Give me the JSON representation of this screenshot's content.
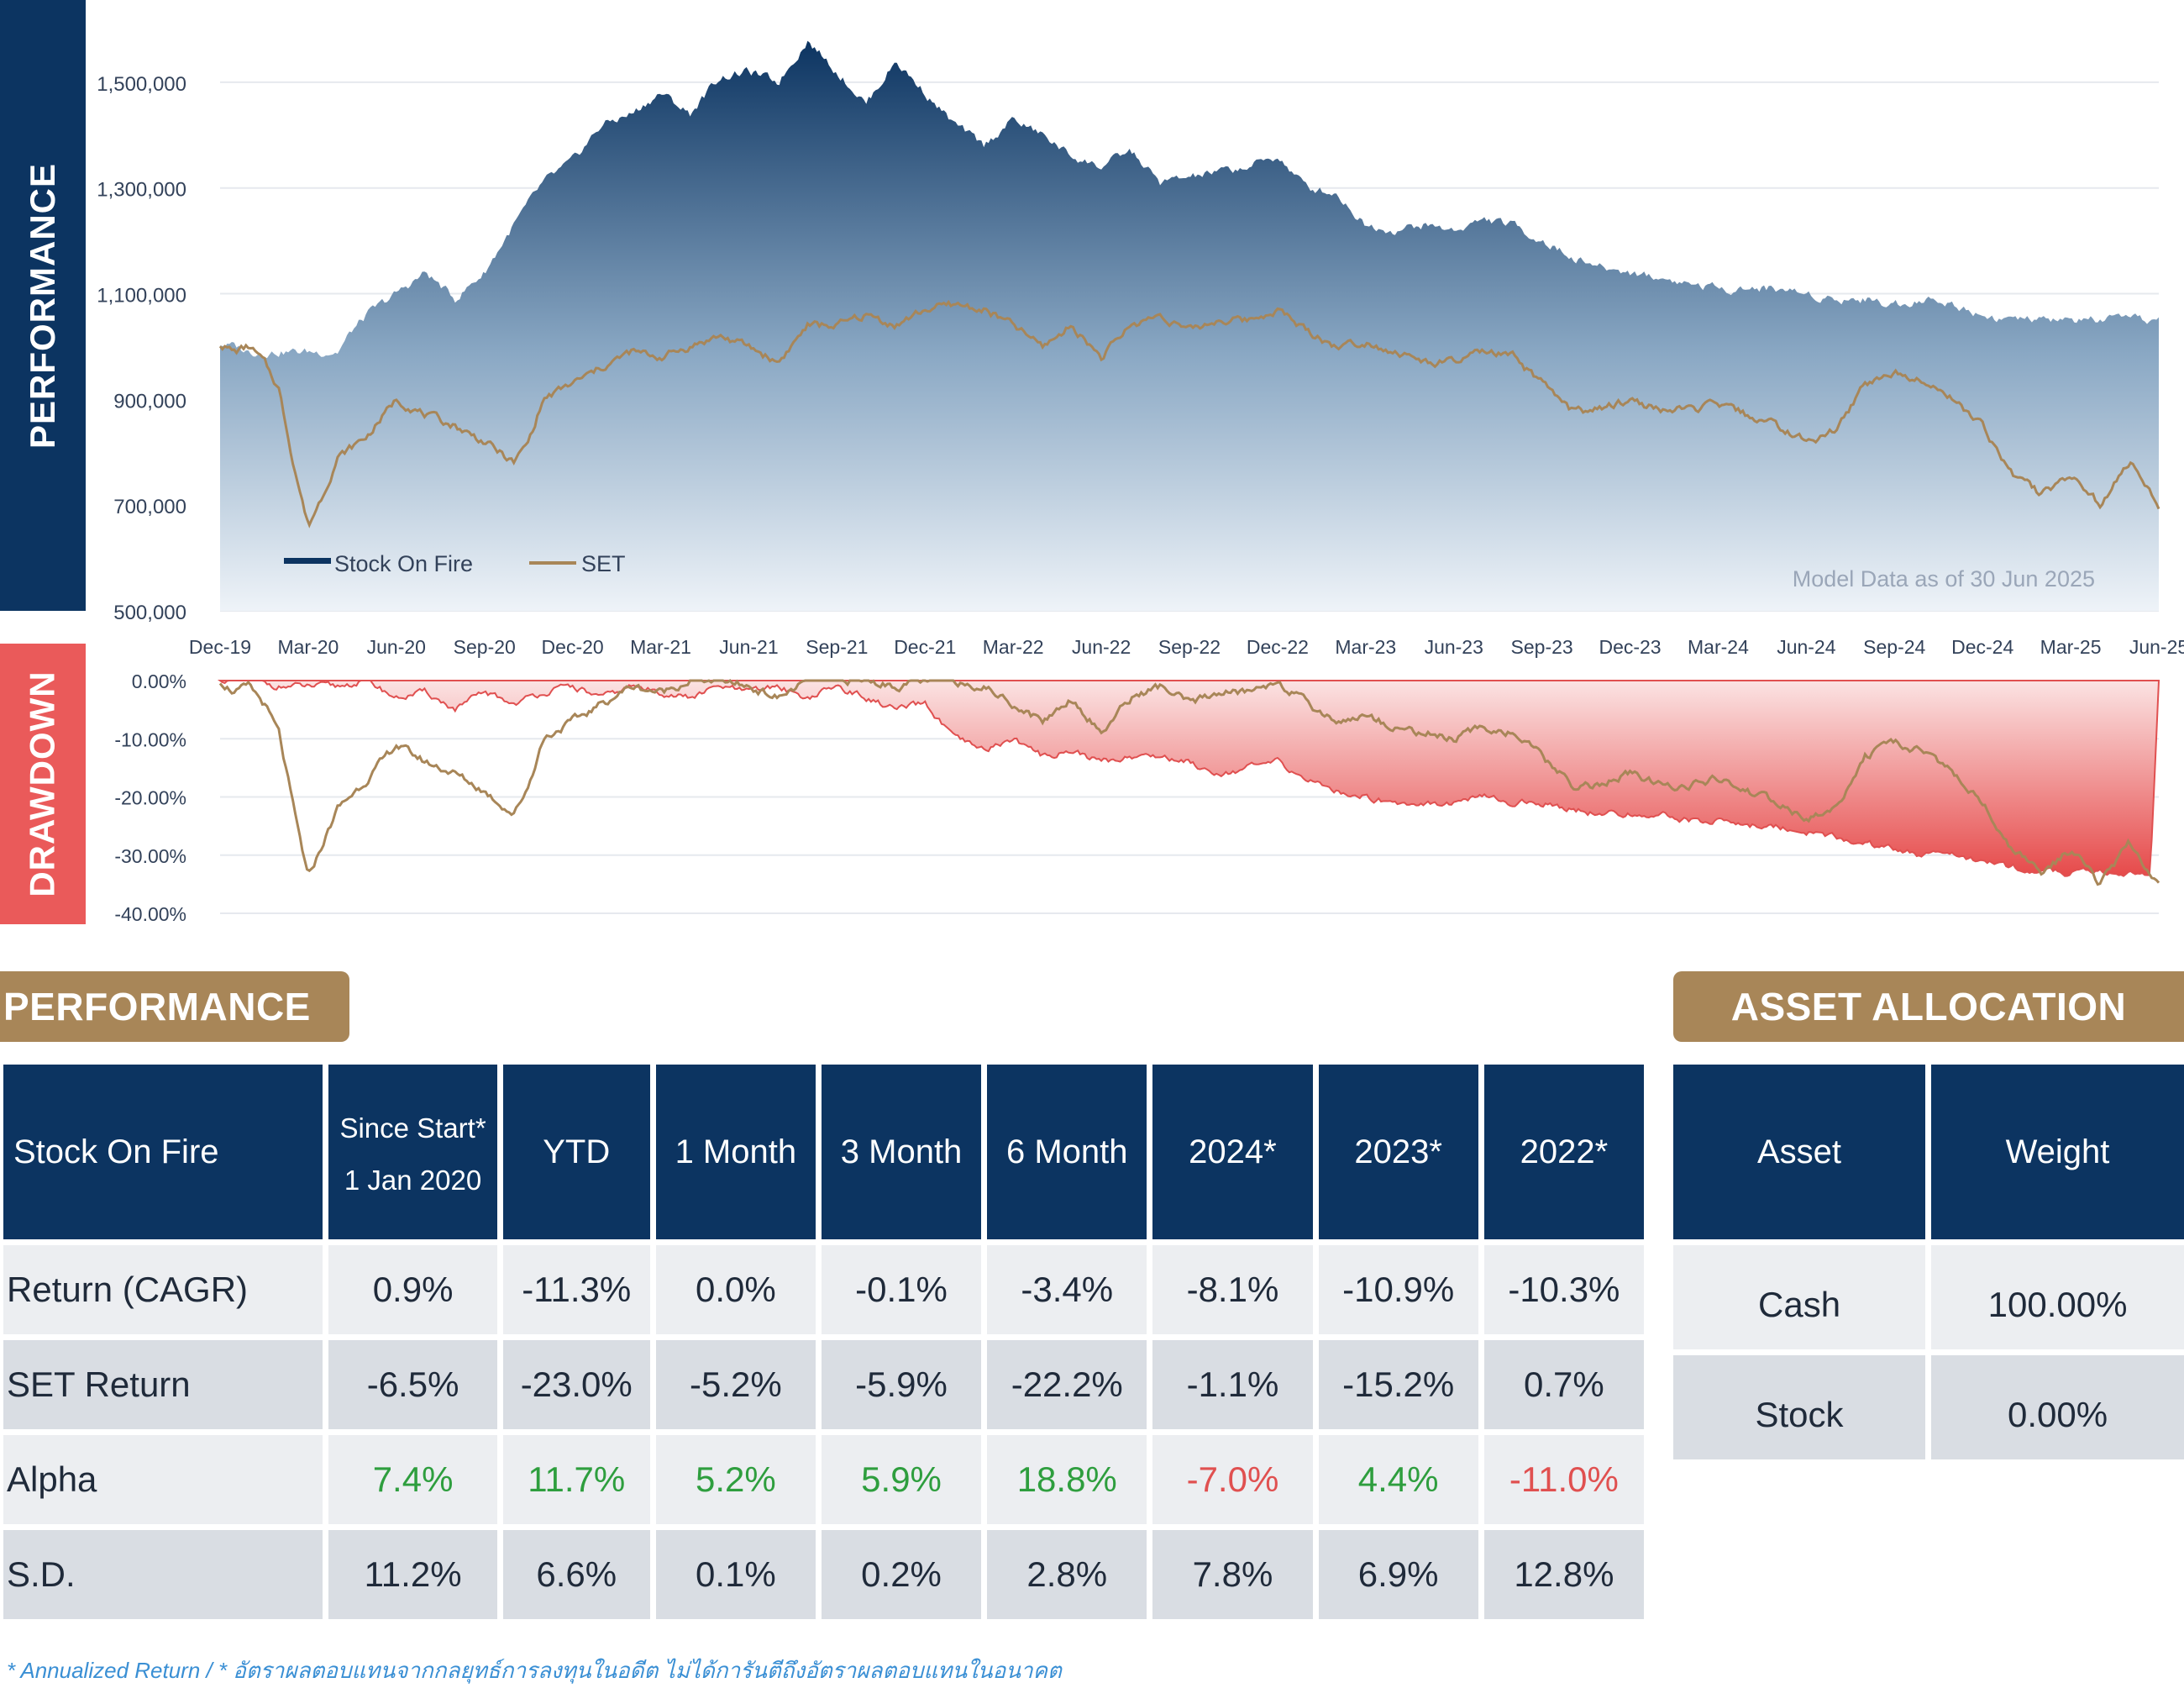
{
  "chart_data": [
    {
      "type": "area",
      "side_label": "PERFORMANCE",
      "title": "",
      "y_ticks": [
        "1,500,000",
        "1,300,000",
        "1,100,000",
        "900,000",
        "700,000",
        "500,000"
      ],
      "y_tick_values": [
        1500000,
        1300000,
        1100000,
        900000,
        700000,
        500000
      ],
      "ylim": [
        500000,
        1600000
      ],
      "x_ticks": [
        "Dec-19",
        "Mar-20",
        "Jun-20",
        "Sep-20",
        "Dec-20",
        "Mar-21",
        "Jun-21",
        "Sep-21",
        "Dec-21",
        "Mar-22",
        "Jun-22",
        "Sep-22",
        "Dec-22",
        "Mar-23",
        "Jun-23",
        "Sep-23",
        "Dec-23",
        "Mar-24",
        "Jun-24",
        "Sep-24",
        "Dec-24",
        "Mar-25",
        "Jun-25"
      ],
      "x_tick_months": [
        0,
        3,
        6,
        9,
        12,
        15,
        18,
        21,
        24,
        27,
        30,
        33,
        36,
        39,
        42,
        45,
        48,
        51,
        54,
        57,
        60,
        63,
        66
      ],
      "annotation": "Model Data as of 30 Jun 2025",
      "legend_position": "bottom-left",
      "grid": true,
      "series": [
        {
          "name": "Stock On Fire",
          "color": "#0c3461",
          "x_month": [
            0,
            0.5,
            1,
            2,
            3,
            4,
            4.5,
            5,
            6,
            7,
            8,
            9,
            10,
            11,
            12,
            13,
            14,
            15,
            16,
            17,
            18,
            19,
            20,
            21,
            22,
            23,
            24,
            25,
            26,
            27,
            28,
            29,
            30,
            31,
            32,
            33,
            34,
            35,
            36,
            37,
            38,
            39,
            40,
            41,
            42,
            43,
            44,
            45,
            46,
            47,
            48,
            49,
            50,
            51,
            52,
            53,
            54,
            55,
            56,
            57,
            58,
            59,
            60,
            61,
            62,
            63,
            64,
            65,
            66
          ],
          "values": [
            1005000,
            1000000,
            990000,
            990000,
            990000,
            990000,
            1030000,
            1060000,
            1100000,
            1140000,
            1090000,
            1140000,
            1230000,
            1310000,
            1350000,
            1420000,
            1440000,
            1480000,
            1440000,
            1510000,
            1520000,
            1500000,
            1580000,
            1520000,
            1460000,
            1540000,
            1480000,
            1420000,
            1380000,
            1430000,
            1400000,
            1360000,
            1340000,
            1370000,
            1310000,
            1320000,
            1330000,
            1340000,
            1360000,
            1300000,
            1290000,
            1230000,
            1220000,
            1230000,
            1220000,
            1240000,
            1230000,
            1200000,
            1170000,
            1150000,
            1140000,
            1130000,
            1120000,
            1110000,
            1110000,
            1110000,
            1100000,
            1090000,
            1090000,
            1080000,
            1090000,
            1080000,
            1060000,
            1050000,
            1050000,
            1050000,
            1050000,
            1050000,
            1050000
          ]
        },
        {
          "name": "SET",
          "color": "#a88658",
          "x_month": [
            0,
            0.5,
            1,
            1.5,
            2,
            2.5,
            3,
            3.5,
            4,
            5,
            6,
            7,
            8,
            9,
            10,
            10.5,
            11,
            12,
            13,
            14,
            15,
            16,
            17,
            18,
            19,
            20,
            21,
            22,
            23,
            24,
            25,
            26,
            27,
            28,
            29,
            30,
            31,
            32,
            33,
            34,
            35,
            36,
            37,
            38,
            39,
            40,
            41,
            42,
            43,
            44,
            45,
            46,
            47,
            48,
            49,
            50,
            51,
            52,
            53,
            54,
            55,
            56,
            57,
            58,
            59,
            60,
            61,
            62,
            63,
            64,
            65,
            66
          ],
          "values": [
            1005000,
            990000,
            1000000,
            970000,
            920000,
            780000,
            660000,
            720000,
            790000,
            830000,
            900000,
            870000,
            850000,
            820000,
            780000,
            820000,
            900000,
            930000,
            960000,
            990000,
            980000,
            1000000,
            1020000,
            1000000,
            970000,
            1040000,
            1040000,
            1060000,
            1040000,
            1070000,
            1080000,
            1070000,
            1040000,
            1000000,
            1040000,
            980000,
            1040000,
            1060000,
            1030000,
            1050000,
            1050000,
            1070000,
            1030000,
            1000000,
            1010000,
            990000,
            970000,
            970000,
            990000,
            980000,
            930000,
            880000,
            880000,
            900000,
            880000,
            880000,
            890000,
            870000,
            850000,
            820000,
            840000,
            930000,
            950000,
            940000,
            900000,
            850000,
            760000,
            720000,
            760000,
            700000,
            780000,
            700000
          ]
        }
      ]
    },
    {
      "type": "area",
      "side_label": "DRAWDOWN",
      "title": "",
      "y_ticks": [
        "0.00%",
        "-10.00%",
        "-20.00%",
        "-30.00%",
        "-40.00%"
      ],
      "y_tick_values": [
        0,
        -10,
        -20,
        -30,
        -40
      ],
      "ylim": [
        -40,
        0
      ],
      "series": [
        {
          "name": "Stock On Fire",
          "color": "#e05050",
          "x_month": [
            0,
            1,
            2,
            3,
            4,
            5,
            6,
            7,
            8,
            9,
            10,
            11,
            12,
            13,
            14,
            15,
            16,
            17,
            18,
            19,
            20,
            21,
            22,
            23,
            24,
            25,
            26,
            27,
            28,
            29,
            30,
            31,
            32,
            33,
            34,
            35,
            36,
            37,
            38,
            39,
            40,
            41,
            42,
            43,
            44,
            45,
            46,
            47,
            48,
            49,
            50,
            51,
            52,
            53,
            54,
            55,
            56,
            57,
            58,
            59,
            60,
            61,
            62,
            63,
            64,
            65,
            65.7,
            66
          ],
          "values": [
            0,
            0,
            -1,
            -1,
            -1,
            0,
            -3,
            -2,
            -5,
            -2,
            -4,
            -2,
            -1,
            -3,
            -1,
            -2,
            -3,
            -1,
            -2,
            -1,
            -3,
            -1,
            -3,
            -5,
            -4,
            -10,
            -12,
            -10,
            -13,
            -12,
            -14,
            -13,
            -13,
            -14,
            -16,
            -15,
            -14,
            -17,
            -19,
            -20,
            -21,
            -21,
            -21,
            -20,
            -21,
            -21,
            -22,
            -23,
            -23,
            -23,
            -24,
            -24,
            -25,
            -25,
            -26,
            -27,
            -28,
            -29,
            -30,
            -30,
            -31,
            -32,
            -33,
            -33,
            -33,
            -33,
            -34,
            0
          ]
        },
        {
          "name": "SET",
          "color": "#a88658",
          "x_month": [
            0,
            0.5,
            1,
            1.5,
            2,
            2.5,
            3,
            3.5,
            4,
            5,
            6,
            7,
            8,
            9,
            10,
            10.5,
            11,
            12,
            13,
            14,
            15,
            16,
            17,
            18,
            19,
            20,
            21,
            22,
            23,
            24,
            25,
            26,
            27,
            28,
            29,
            30,
            31,
            32,
            33,
            34,
            35,
            36,
            37,
            38,
            39,
            40,
            41,
            42,
            43,
            44,
            45,
            46,
            47,
            48,
            49,
            50,
            51,
            52,
            53,
            54,
            55,
            56,
            57,
            58,
            59,
            60,
            61,
            62,
            63,
            64,
            65,
            66
          ],
          "values": [
            0,
            -2,
            -1,
            -4,
            -9,
            -22,
            -34,
            -28,
            -22,
            -17,
            -11,
            -14,
            -16,
            -19,
            -23,
            -18,
            -10,
            -7,
            -4,
            -1,
            -2,
            0,
            0,
            -1,
            -3,
            0,
            0,
            0,
            -1,
            0,
            0,
            -1,
            -4,
            -7,
            -3,
            -9,
            -3,
            -1,
            -4,
            -2,
            -2,
            0,
            -4,
            -7,
            -6,
            -8,
            -9,
            -10,
            -8,
            -9,
            -13,
            -18,
            -18,
            -16,
            -18,
            -18,
            -17,
            -19,
            -21,
            -24,
            -22,
            -13,
            -11,
            -12,
            -16,
            -21,
            -29,
            -33,
            -29,
            -35,
            -28,
            -35
          ]
        }
      ]
    }
  ],
  "performance": {
    "tab_label": "PERFORMANCE",
    "headers": [
      "Stock On Fire",
      "Since Start*",
      "1 Jan 2020",
      "YTD",
      "1 Month",
      "3 Month",
      "6 Month",
      "2024*",
      "2023*",
      "2022*"
    ],
    "rows": [
      {
        "label": "Return (CAGR)",
        "values": [
          "0.9%",
          "-11.3%",
          "0.0%",
          "-0.1%",
          "-3.4%",
          "-8.1%",
          "-10.9%",
          "-10.3%"
        ]
      },
      {
        "label": "SET Return",
        "values": [
          "-6.5%",
          "-23.0%",
          "-5.2%",
          "-5.9%",
          "-22.2%",
          "-1.1%",
          "-15.2%",
          "0.7%"
        ]
      },
      {
        "label": "Alpha",
        "values": [
          "7.4%",
          "11.7%",
          "5.2%",
          "5.9%",
          "18.8%",
          "-7.0%",
          "4.4%",
          "-11.0%"
        ]
      },
      {
        "label": "S.D.",
        "values": [
          "11.2%",
          "6.6%",
          "0.1%",
          "0.2%",
          "2.8%",
          "7.8%",
          "6.9%",
          "12.8%"
        ]
      }
    ],
    "positive_color": "#2e9e3e",
    "negative_color": "#e05050"
  },
  "allocation": {
    "tab_label": "ASSET ALLOCATION",
    "headers": [
      "Asset",
      "Weight"
    ],
    "rows": [
      {
        "asset": "Cash",
        "weight": "100.00%"
      },
      {
        "asset": "Stock",
        "weight": "0.00%"
      }
    ]
  },
  "footnote": "* Annualized Return / * อัตราผลตอบแทนจากกลยุทธ์การลงทุนในอดีต ไม่ได้การันตีถึงอัตราผลตอบแทนในอนาคต"
}
